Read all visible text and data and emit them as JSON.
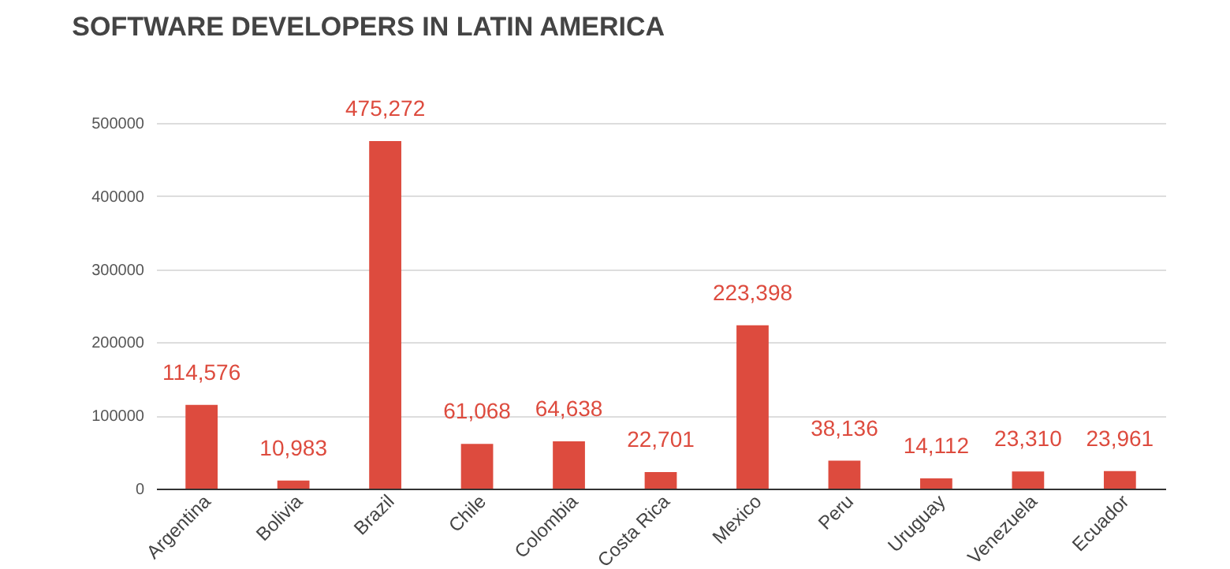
{
  "chart_data": {
    "type": "bar",
    "title": "SOFTWARE DEVELOPERS IN LATIN AMERICA",
    "categories": [
      "Argentina",
      "Bolivia",
      "Brazil",
      "Chile",
      "Colombia",
      "Costa Rica",
      "Mexico",
      "Peru",
      "Uruguay",
      "Venezuela",
      "Ecuador"
    ],
    "values": [
      114576,
      10983,
      475272,
      61068,
      64638,
      22701,
      223398,
      38136,
      14112,
      23310,
      23961
    ],
    "color": "#dd4b3e",
    "value_labels": [
      "114,576",
      "10,983",
      "475,272",
      "61,068",
      "64,638",
      "22,701",
      "223,398",
      "38,136",
      "14,112",
      "23,310",
      "23,961"
    ],
    "ylim": [
      0,
      500000
    ],
    "yticks": [
      0,
      100000,
      200000,
      300000,
      400000,
      500000
    ],
    "grid": "y"
  }
}
